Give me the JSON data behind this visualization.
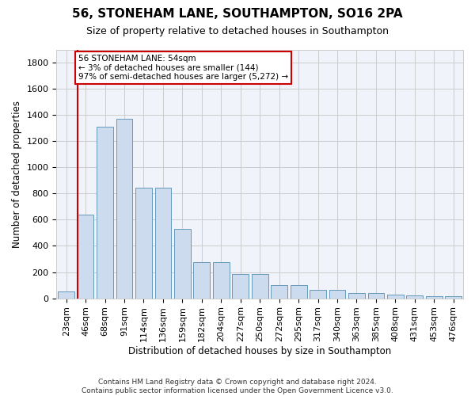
{
  "title": "56, STONEHAM LANE, SOUTHAMPTON, SO16 2PA",
  "subtitle": "Size of property relative to detached houses in Southampton",
  "xlabel": "Distribution of detached houses by size in Southampton",
  "ylabel": "Number of detached properties",
  "categories": [
    "23sqm",
    "46sqm",
    "68sqm",
    "91sqm",
    "114sqm",
    "136sqm",
    "159sqm",
    "182sqm",
    "204sqm",
    "227sqm",
    "250sqm",
    "272sqm",
    "295sqm",
    "317sqm",
    "340sqm",
    "363sqm",
    "385sqm",
    "408sqm",
    "431sqm",
    "453sqm",
    "476sqm"
  ],
  "values": [
    50,
    640,
    1310,
    1370,
    845,
    845,
    530,
    275,
    275,
    185,
    185,
    100,
    100,
    62,
    62,
    40,
    37,
    30,
    22,
    13,
    13
  ],
  "bar_color": "#ccdcee",
  "bar_edge_color": "#6699bb",
  "vline_color": "#cc0000",
  "annotation_text": "56 STONEHAM LANE: 54sqm\n← 3% of detached houses are smaller (144)\n97% of semi-detached houses are larger (5,272) →",
  "annotation_box_facecolor": "#ffffff",
  "annotation_box_edgecolor": "#cc0000",
  "ylim": [
    0,
    1900
  ],
  "yticks": [
    0,
    200,
    400,
    600,
    800,
    1000,
    1200,
    1400,
    1600,
    1800
  ],
  "fig_bg_color": "#ffffff",
  "plot_bg_color": "#f0f4fa",
  "grid_color": "#cccccc",
  "footer": "Contains HM Land Registry data © Crown copyright and database right 2024.\nContains public sector information licensed under the Open Government Licence v3.0.",
  "title_fontsize": 11,
  "subtitle_fontsize": 9,
  "xlabel_fontsize": 8.5,
  "ylabel_fontsize": 8.5,
  "tick_fontsize": 8,
  "annotation_fontsize": 7.5,
  "footer_fontsize": 6.5
}
